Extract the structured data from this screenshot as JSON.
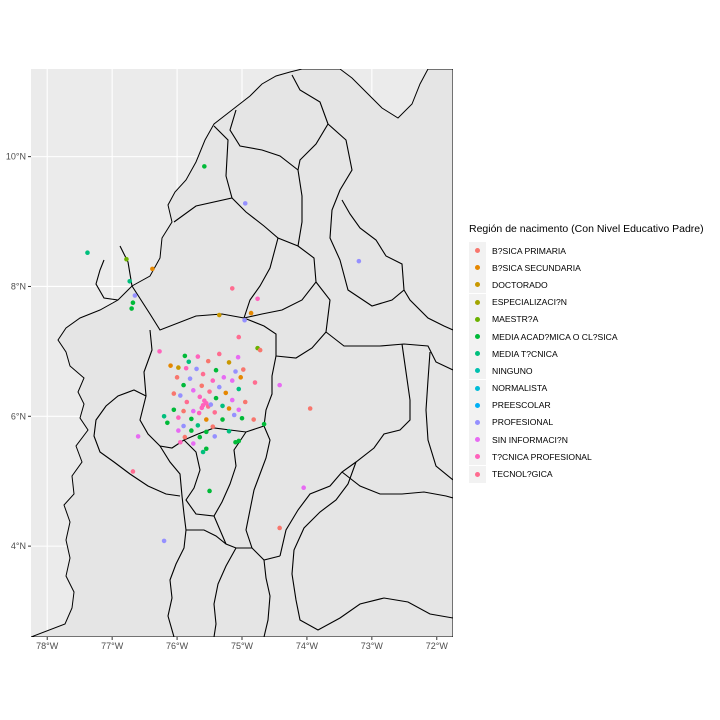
{
  "chart_data": {
    "type": "scatter",
    "xlim": [
      -78.25,
      -71.75
    ],
    "ylim": [
      2.6,
      11.35
    ],
    "grid": true,
    "legend_position": "right",
    "panel_background": "#ebebeb",
    "land_fill": "#e5e5e5",
    "border_color": "#000000",
    "x_ticks": [
      {
        "value": -78,
        "label": "78°W"
      },
      {
        "value": -77,
        "label": "77°W"
      },
      {
        "value": -76,
        "label": "76°W"
      },
      {
        "value": -75,
        "label": "75°W"
      },
      {
        "value": -74,
        "label": "74°W"
      },
      {
        "value": -73,
        "label": "73°W"
      },
      {
        "value": -72,
        "label": "72°W"
      }
    ],
    "y_ticks": [
      {
        "value": 4,
        "label": "4°N"
      },
      {
        "value": 6,
        "label": "6°N"
      },
      {
        "value": 8,
        "label": "8°N"
      },
      {
        "value": 10,
        "label": "10°N"
      }
    ],
    "legend": {
      "title": "Región de nacimento (Con Nivel Educativo Padre)",
      "items": [
        {
          "label": "B?SICA PRIMARIA",
          "color": "#F8766D"
        },
        {
          "label": "B?SICA SECUNDARIA",
          "color": "#E58700"
        },
        {
          "label": "DOCTORADO",
          "color": "#C99800"
        },
        {
          "label": "ESPECIALIZACI?N",
          "color": "#A3A500"
        },
        {
          "label": "MAESTR?A",
          "color": "#6BB100"
        },
        {
          "label": "MEDIA ACAD?MICA O CL?SICA",
          "color": "#00BA38"
        },
        {
          "label": "MEDIA T?CNICA",
          "color": "#00BF7D"
        },
        {
          "label": "NINGUNO",
          "color": "#00C0AF"
        },
        {
          "label": "NORMALISTA",
          "color": "#00BCD8"
        },
        {
          "label": "PREESCOLAR",
          "color": "#00B0F6"
        },
        {
          "label": "PROFESIONAL",
          "color": "#9590FF"
        },
        {
          "label": "SIN INFORMACI?N",
          "color": "#E76BF3"
        },
        {
          "label": "T?CNICA PROFESIONAL",
          "color": "#FF62BC"
        },
        {
          "label": "TECNOL?GICA",
          "color": "#FF6C90"
        }
      ]
    },
    "points": [
      {
        "lon": -75.58,
        "lat": 9.85,
        "cat": "MEDIA ACAD?MICA O CL?SICA"
      },
      {
        "lon": -74.95,
        "lat": 9.28,
        "cat": "PROFESIONAL"
      },
      {
        "lon": -77.38,
        "lat": 8.52,
        "cat": "MEDIA T?CNICA"
      },
      {
        "lon": -76.78,
        "lat": 8.42,
        "cat": "MAESTR?A"
      },
      {
        "lon": -76.38,
        "lat": 8.27,
        "cat": "B?SICA SECUNDARIA"
      },
      {
        "lon": -76.73,
        "lat": 8.08,
        "cat": "MEDIA T?CNICA"
      },
      {
        "lon": -73.2,
        "lat": 8.39,
        "cat": "PROFESIONAL"
      },
      {
        "lon": -75.15,
        "lat": 7.97,
        "cat": "TECNOL?GICA"
      },
      {
        "lon": -76.65,
        "lat": 7.86,
        "cat": "PROFESIONAL"
      },
      {
        "lon": -76.68,
        "lat": 7.75,
        "cat": "MEDIA ACAD?MICA O CL?SICA"
      },
      {
        "lon": -76.7,
        "lat": 7.66,
        "cat": "MEDIA ACAD?MICA O CL?SICA"
      },
      {
        "lon": -74.76,
        "lat": 7.81,
        "cat": "T?CNICA PROFESIONAL"
      },
      {
        "lon": -74.86,
        "lat": 7.59,
        "cat": "B?SICA SECUNDARIA"
      },
      {
        "lon": -75.35,
        "lat": 7.56,
        "cat": "DOCTORADO"
      },
      {
        "lon": -74.96,
        "lat": 7.48,
        "cat": "PROFESIONAL"
      },
      {
        "lon": -75.05,
        "lat": 7.22,
        "cat": "TECNOL?GICA"
      },
      {
        "lon": -74.76,
        "lat": 7.05,
        "cat": "MAESTR?A"
      },
      {
        "lon": -74.72,
        "lat": 7.02,
        "cat": "B?SICA PRIMARIA"
      },
      {
        "lon": -76.27,
        "lat": 7.0,
        "cat": "T?CNICA PROFESIONAL"
      },
      {
        "lon": -75.88,
        "lat": 6.93,
        "cat": "MEDIA ACAD?MICA O CL?SICA"
      },
      {
        "lon": -75.68,
        "lat": 6.92,
        "cat": "T?CNICA PROFESIONAL"
      },
      {
        "lon": -75.35,
        "lat": 6.96,
        "cat": "TECNOL?GICA"
      },
      {
        "lon": -75.06,
        "lat": 6.91,
        "cat": "SIN INFORMACI?N"
      },
      {
        "lon": -75.82,
        "lat": 6.84,
        "cat": "MEDIA T?CNICA"
      },
      {
        "lon": -75.52,
        "lat": 6.85,
        "cat": "B?SICA PRIMARIA"
      },
      {
        "lon": -75.2,
        "lat": 6.83,
        "cat": "DOCTORADO"
      },
      {
        "lon": -76.1,
        "lat": 6.78,
        "cat": "B?SICA SECUNDARIA"
      },
      {
        "lon": -75.98,
        "lat": 6.75,
        "cat": "DOCTORADO"
      },
      {
        "lon": -75.86,
        "lat": 6.74,
        "cat": "T?CNICA PROFESIONAL"
      },
      {
        "lon": -75.7,
        "lat": 6.73,
        "cat": "PROFESIONAL"
      },
      {
        "lon": -75.4,
        "lat": 6.71,
        "cat": "MEDIA ACAD?MICA O CL?SICA"
      },
      {
        "lon": -75.1,
        "lat": 6.69,
        "cat": "PROFESIONAL"
      },
      {
        "lon": -74.98,
        "lat": 6.72,
        "cat": "B?SICA PRIMARIA"
      },
      {
        "lon": -75.6,
        "lat": 6.65,
        "cat": "TECNOL?GICA"
      },
      {
        "lon": -75.28,
        "lat": 6.6,
        "cat": "SIN INFORMACI?N"
      },
      {
        "lon": -75.02,
        "lat": 6.6,
        "cat": "B?SICA SECUNDARIA"
      },
      {
        "lon": -76.0,
        "lat": 6.6,
        "cat": "B?SICA PRIMARIA"
      },
      {
        "lon": -75.8,
        "lat": 6.58,
        "cat": "PROFESIONAL"
      },
      {
        "lon": -75.45,
        "lat": 6.55,
        "cat": "T?CNICA PROFESIONAL"
      },
      {
        "lon": -75.15,
        "lat": 6.55,
        "cat": "SIN INFORMACI?N"
      },
      {
        "lon": -74.8,
        "lat": 6.52,
        "cat": "TECNOL?GICA"
      },
      {
        "lon": -75.9,
        "lat": 6.48,
        "cat": "MEDIA ACAD?MICA O CL?SICA"
      },
      {
        "lon": -75.62,
        "lat": 6.47,
        "cat": "B?SICA PRIMARIA"
      },
      {
        "lon": -75.35,
        "lat": 6.45,
        "cat": "PROFESIONAL"
      },
      {
        "lon": -75.05,
        "lat": 6.42,
        "cat": "MEDIA T?CNICA"
      },
      {
        "lon": -74.42,
        "lat": 6.48,
        "cat": "SIN INFORMACI?N"
      },
      {
        "lon": -75.75,
        "lat": 6.4,
        "cat": "SIN INFORMACI?N"
      },
      {
        "lon": -75.5,
        "lat": 6.38,
        "cat": "TECNOL?GICA"
      },
      {
        "lon": -75.25,
        "lat": 6.36,
        "cat": "B?SICA SECUNDARIA"
      },
      {
        "lon": -76.05,
        "lat": 6.35,
        "cat": "B?SICA PRIMARIA"
      },
      {
        "lon": -75.95,
        "lat": 6.32,
        "cat": "PROFESIONAL"
      },
      {
        "lon": -75.65,
        "lat": 6.3,
        "cat": "T?CNICA PROFESIONAL"
      },
      {
        "lon": -75.4,
        "lat": 6.28,
        "cat": "MEDIA ACAD?MICA O CL?SICA"
      },
      {
        "lon": -75.15,
        "lat": 6.25,
        "cat": "SIN INFORMACI?N"
      },
      {
        "lon": -74.95,
        "lat": 6.22,
        "cat": "B?SICA PRIMARIA"
      },
      {
        "lon": -75.85,
        "lat": 6.22,
        "cat": "TECNOL?GICA"
      },
      {
        "lon": -75.58,
        "lat": 6.24,
        "cat": "T?CNICA PROFESIONAL"
      },
      {
        "lon": -75.55,
        "lat": 6.2,
        "cat": "T?CNICA PROFESIONAL"
      },
      {
        "lon": -75.6,
        "lat": 6.17,
        "cat": "T?CNICA PROFESIONAL"
      },
      {
        "lon": -75.52,
        "lat": 6.15,
        "cat": "TECNOL?GICA"
      },
      {
        "lon": -75.62,
        "lat": 6.13,
        "cat": "T?CNICA PROFESIONAL"
      },
      {
        "lon": -75.48,
        "lat": 6.18,
        "cat": "PROFESIONAL"
      },
      {
        "lon": -75.3,
        "lat": 6.16,
        "cat": "MEDIA T?CNICA"
      },
      {
        "lon": -75.2,
        "lat": 6.12,
        "cat": "B?SICA SECUNDARIA"
      },
      {
        "lon": -75.05,
        "lat": 6.1,
        "cat": "SIN INFORMACI?N"
      },
      {
        "lon": -76.05,
        "lat": 6.1,
        "cat": "MEDIA ACAD?MICA O CL?SICA"
      },
      {
        "lon": -75.9,
        "lat": 6.08,
        "cat": "B?SICA PRIMARIA"
      },
      {
        "lon": -75.75,
        "lat": 6.08,
        "cat": "SIN INFORMACI?N"
      },
      {
        "lon": -75.42,
        "lat": 6.06,
        "cat": "TECNOL?GICA"
      },
      {
        "lon": -75.66,
        "lat": 6.05,
        "cat": "T?CNICA PROFESIONAL"
      },
      {
        "lon": -75.12,
        "lat": 6.02,
        "cat": "PROFESIONAL"
      },
      {
        "lon": -73.95,
        "lat": 6.12,
        "cat": "B?SICA PRIMARIA"
      },
      {
        "lon": -76.2,
        "lat": 6.0,
        "cat": "MEDIA T?CNICA"
      },
      {
        "lon": -75.98,
        "lat": 5.98,
        "cat": "T?CNICA PROFESIONAL"
      },
      {
        "lon": -75.78,
        "lat": 5.96,
        "cat": "MEDIA ACAD?MICA O CL?SICA"
      },
      {
        "lon": -75.55,
        "lat": 5.95,
        "cat": "B?SICA SECUNDARIA"
      },
      {
        "lon": -75.3,
        "lat": 5.95,
        "cat": "MEDIA ACAD?MICA O CL?SICA"
      },
      {
        "lon": -75.0,
        "lat": 5.97,
        "cat": "MEDIA ACAD?MICA O CL?SICA"
      },
      {
        "lon": -74.82,
        "lat": 5.95,
        "cat": "B?SICA PRIMARIA"
      },
      {
        "lon": -76.15,
        "lat": 5.9,
        "cat": "MEDIA ACAD?MICA O CL?SICA"
      },
      {
        "lon": -75.9,
        "lat": 5.85,
        "cat": "PROFESIONAL"
      },
      {
        "lon": -75.68,
        "lat": 5.86,
        "cat": "MEDIA T?CNICA"
      },
      {
        "lon": -75.45,
        "lat": 5.84,
        "cat": "B?SICA PRIMARIA"
      },
      {
        "lon": -74.66,
        "lat": 5.88,
        "cat": "MEDIA ACAD?MICA O CL?SICA"
      },
      {
        "lon": -75.98,
        "lat": 5.78,
        "cat": "SIN INFORMACI?N"
      },
      {
        "lon": -75.78,
        "lat": 5.78,
        "cat": "MEDIA ACAD?MICA O CL?SICA"
      },
      {
        "lon": -75.55,
        "lat": 5.76,
        "cat": "MEDIA ACAD?MICA O CL?SICA"
      },
      {
        "lon": -75.2,
        "lat": 5.77,
        "cat": "MEDIA T?CNICA"
      },
      {
        "lon": -76.6,
        "lat": 5.69,
        "cat": "SIN INFORMACI?N"
      },
      {
        "lon": -75.88,
        "lat": 5.68,
        "cat": "B?SICA PRIMARIA"
      },
      {
        "lon": -75.65,
        "lat": 5.68,
        "cat": "MEDIA ACAD?MICA O CL?SICA"
      },
      {
        "lon": -75.42,
        "lat": 5.69,
        "cat": "PROFESIONAL"
      },
      {
        "lon": -75.1,
        "lat": 5.6,
        "cat": "MEDIA ACAD?MICA O CL?SICA"
      },
      {
        "lon": -75.05,
        "lat": 5.62,
        "cat": "MEDIA ACAD?MICA O CL?SICA"
      },
      {
        "lon": -75.95,
        "lat": 5.6,
        "cat": "T?CNICA PROFESIONAL"
      },
      {
        "lon": -75.75,
        "lat": 5.58,
        "cat": "SIN INFORMACI?N"
      },
      {
        "lon": -75.55,
        "lat": 5.5,
        "cat": "MEDIA ACAD?MICA O CL?SICA"
      },
      {
        "lon": -75.6,
        "lat": 5.45,
        "cat": "MEDIA T?CNICA"
      },
      {
        "lon": -76.68,
        "lat": 5.15,
        "cat": "TECNOL?GICA"
      },
      {
        "lon": -75.5,
        "lat": 4.85,
        "cat": "MEDIA ACAD?MICA O CL?SICA"
      },
      {
        "lon": -74.05,
        "lat": 4.9,
        "cat": "SIN INFORMACI?N"
      },
      {
        "lon": -74.42,
        "lat": 4.28,
        "cat": "B?SICA PRIMARIA"
      },
      {
        "lon": -76.2,
        "lat": 4.08,
        "cat": "PROFESIONAL"
      }
    ]
  }
}
